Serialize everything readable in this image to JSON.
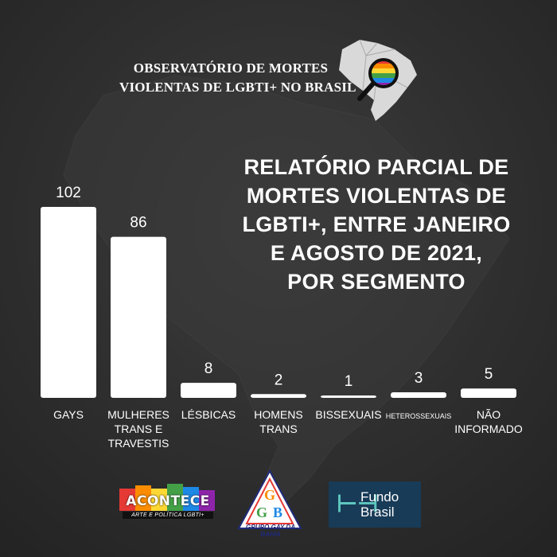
{
  "header": {
    "observatory_line1": "OBSERVATÓRIO DE MORTES",
    "observatory_line2": "VIOLENTAS DE LGBTI+ NO BRASIL"
  },
  "headline": {
    "line1": "RELATÓRIO PARCIAL DE",
    "line2": "MORTES VIOLENTAS DE",
    "line3": "LGBTI+, ENTRE JANEIRO",
    "line4": "E AGOSTO DE 2021,",
    "line5": "POR SEGMENTO"
  },
  "chart_data": {
    "type": "bar",
    "categories": [
      "GAYS",
      "MULHERES TRANS E TRAVESTIS",
      "LÉSBICAS",
      "HOMENS TRANS",
      "BISSEXUAIS",
      "HETEROSSEXUAIS",
      "NÃO INFORMADO"
    ],
    "category_lines": [
      [
        "GAYS"
      ],
      [
        "MULHERES",
        "TRANS E",
        "TRAVESTIS"
      ],
      [
        "LÉSBICAS"
      ],
      [
        "HOMENS",
        "TRANS"
      ],
      [
        "BISSEXUAIS"
      ],
      [
        "HETEROSSEXUAIS"
      ],
      [
        "NÃO",
        "INFORMADO"
      ]
    ],
    "values": [
      102,
      86,
      8,
      2,
      1,
      3,
      5
    ],
    "title": "",
    "xlabel": "",
    "ylabel": "",
    "ylim": [
      0,
      102
    ],
    "grid": false,
    "legend": "none",
    "bar_color": "#ffffff"
  },
  "logos": {
    "acontece_name": "ACONTECE",
    "acontece_tagline": "ARTE E POLÍTICA LGBTI+",
    "ggb_caption": "GRUPO GAY DA BAHIA",
    "fundo_line1": "Fundo",
    "fundo_line2": "Brasil"
  },
  "colors": {
    "background": "#2e2e2e",
    "text": "#ffffff",
    "fundo_brasil": "#183b57",
    "fundo_accent": "#5ec7c0",
    "ggb_blue": "#1f2a7a"
  }
}
